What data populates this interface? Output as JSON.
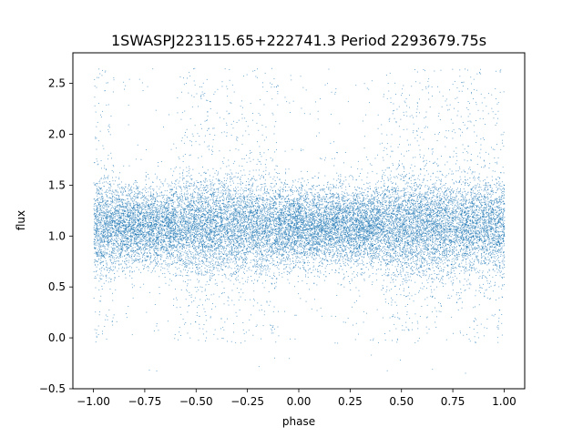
{
  "chart_data": {
    "type": "scatter",
    "title": "1SWASPJ223115.65+222741.3 Period 2293679.75s",
    "xlabel": "phase",
    "ylabel": "flux",
    "xlim": [
      -1.1,
      1.1
    ],
    "ylim": [
      -0.5,
      2.8
    ],
    "x_ticks": [
      -1.0,
      -0.75,
      -0.5,
      -0.25,
      0.0,
      0.25,
      0.5,
      0.75,
      1.0
    ],
    "x_tick_labels": [
      "−1.00",
      "−0.75",
      "−0.50",
      "−0.25",
      "0.00",
      "0.25",
      "0.50",
      "0.75",
      "1.00"
    ],
    "y_ticks": [
      -0.5,
      0.0,
      0.5,
      1.0,
      1.5,
      2.0,
      2.5
    ],
    "y_tick_labels": [
      "−0.5",
      "0.0",
      "0.5",
      "1.0",
      "1.5",
      "2.0",
      "2.5"
    ],
    "grid": false,
    "marker_color": "#1f77b4",
    "series": [
      {
        "phase_range": [
          -1.0,
          1.0
        ],
        "median_flux": 1.1,
        "dense_band": [
          0.8,
          1.45
        ],
        "outlier_range": [
          -0.35,
          2.65
        ],
        "high_scatter_phase_intervals": [
          [
            -1.0,
            -0.9
          ],
          [
            -0.6,
            -0.1
          ],
          [
            0.4,
            1.0
          ]
        ],
        "n_points_approx": 20000
      }
    ]
  }
}
